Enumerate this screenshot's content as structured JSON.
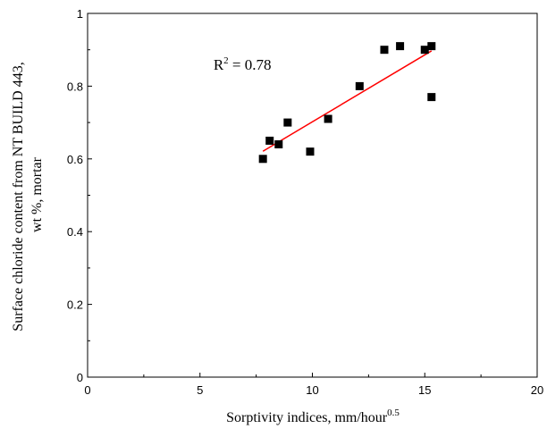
{
  "chart_data": {
    "type": "scatter",
    "title": "",
    "xlabel": "Sorptivity indices, mm/hour",
    "xlabel_sup": "0.5",
    "ylabel_line1": "Surface chloride content from NT BUILD 443,",
    "ylabel_line2": "wt %, mortar",
    "xlim": [
      0,
      20
    ],
    "ylim": [
      0,
      1
    ],
    "xticks": [
      0,
      5,
      10,
      15,
      20
    ],
    "yticks": [
      0,
      0.2,
      0.4,
      0.6,
      0.8,
      1
    ],
    "xtick_labels": [
      "0",
      "5",
      "10",
      "15",
      "20"
    ],
    "ytick_labels": [
      "0",
      "0.2",
      "0.4",
      "0.6",
      "0.8",
      "1"
    ],
    "grid": false,
    "points": [
      {
        "x": 7.8,
        "y": 0.6
      },
      {
        "x": 8.1,
        "y": 0.65
      },
      {
        "x": 8.5,
        "y": 0.64
      },
      {
        "x": 8.9,
        "y": 0.7
      },
      {
        "x": 9.9,
        "y": 0.62
      },
      {
        "x": 10.7,
        "y": 0.71
      },
      {
        "x": 12.1,
        "y": 0.8
      },
      {
        "x": 13.2,
        "y": 0.9
      },
      {
        "x": 13.9,
        "y": 0.91
      },
      {
        "x": 15.0,
        "y": 0.9
      },
      {
        "x": 15.3,
        "y": 0.91
      },
      {
        "x": 15.3,
        "y": 0.77
      }
    ],
    "fit_line": {
      "x": [
        7.8,
        15.3
      ],
      "y": [
        0.621,
        0.897
      ],
      "color": "#ff0000"
    },
    "annotation": {
      "base": "R",
      "sup": "2",
      "text": " = 0.78",
      "x": 5.6,
      "y": 0.845
    },
    "marker_color": "#000000"
  }
}
